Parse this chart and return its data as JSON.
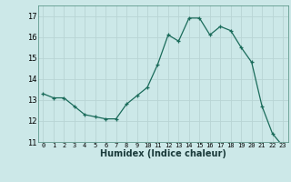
{
  "x": [
    0,
    1,
    2,
    3,
    4,
    5,
    6,
    7,
    8,
    9,
    10,
    11,
    12,
    13,
    14,
    15,
    16,
    17,
    18,
    19,
    20,
    21,
    22,
    23
  ],
  "y": [
    13.3,
    13.1,
    13.1,
    12.7,
    12.3,
    12.2,
    12.1,
    12.1,
    12.8,
    13.2,
    13.6,
    14.7,
    16.1,
    15.8,
    16.9,
    16.9,
    16.1,
    16.5,
    16.3,
    15.5,
    14.8,
    12.7,
    11.4,
    10.8
  ],
  "xlabel": "Humidex (Indice chaleur)",
  "bg_color": "#cce8e8",
  "grid_color": "#b8d4d4",
  "line_color": "#1a6b5a",
  "xlim": [
    -0.5,
    23.5
  ],
  "ylim": [
    11,
    17.5
  ],
  "yticks": [
    11,
    12,
    13,
    14,
    15,
    16,
    17
  ],
  "xticks": [
    0,
    1,
    2,
    3,
    4,
    5,
    6,
    7,
    8,
    9,
    10,
    11,
    12,
    13,
    14,
    15,
    16,
    17,
    18,
    19,
    20,
    21,
    22,
    23
  ]
}
